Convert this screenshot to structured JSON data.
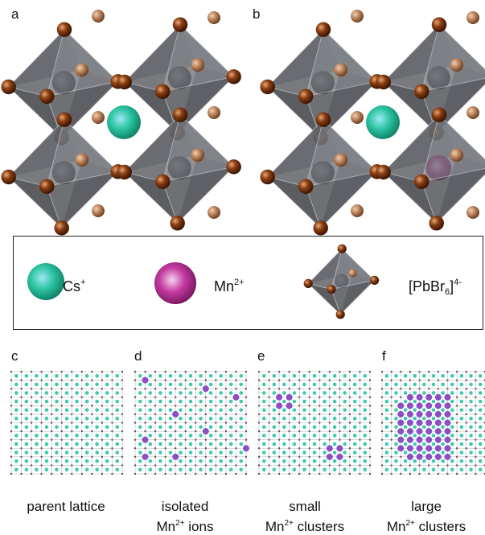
{
  "panels": {
    "a": "a",
    "b": "b",
    "c": "c",
    "d": "d",
    "e": "e",
    "f": "f"
  },
  "legend": {
    "cs": {
      "base": "Cs",
      "sup": "+"
    },
    "mn": {
      "base": "Mn",
      "sup": "2+"
    },
    "oct": {
      "pre": "[PbBr",
      "sub": "6",
      "close": "]",
      "sup": "4-"
    }
  },
  "captions": {
    "c": {
      "line1": "parent lattice"
    },
    "d": {
      "line1": "isolated",
      "line2_pre": "Mn",
      "line2_sup": "2+",
      "line2_post": " ions"
    },
    "e": {
      "line1": "small",
      "line2_pre": "Mn",
      "line2_sup": "2+",
      "line2_post": " clusters"
    },
    "f": {
      "line1": "large",
      "line2_pre": "Mn",
      "line2_sup": "2+",
      "line2_post": " clusters"
    }
  },
  "colors": {
    "cs": "#2fc6a4",
    "mn": "#c43aa0",
    "br": "#8a3e12",
    "octahedron": "#5c5e63",
    "lattice_mn": "#8a4fc2",
    "lattice_grid": "#9a9a9a"
  }
}
